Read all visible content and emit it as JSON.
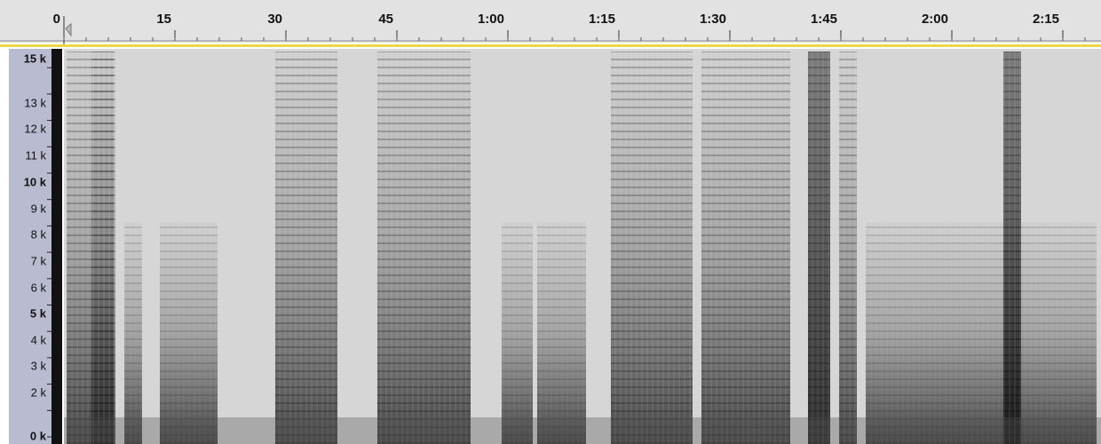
{
  "ruler": {
    "labels": [
      "0",
      "15",
      "30",
      "45",
      "1:00",
      "1:15",
      "1:30",
      "1:45",
      "2:00",
      "2:15"
    ]
  },
  "frequency_axis": {
    "labels": [
      "15 k",
      "13 k",
      "12 k",
      "11 k",
      "10 k",
      "9 k",
      "8 k",
      "7 k",
      "6 k",
      "5 k",
      "4 k",
      "3 k",
      "2 k",
      "0 k"
    ]
  }
}
